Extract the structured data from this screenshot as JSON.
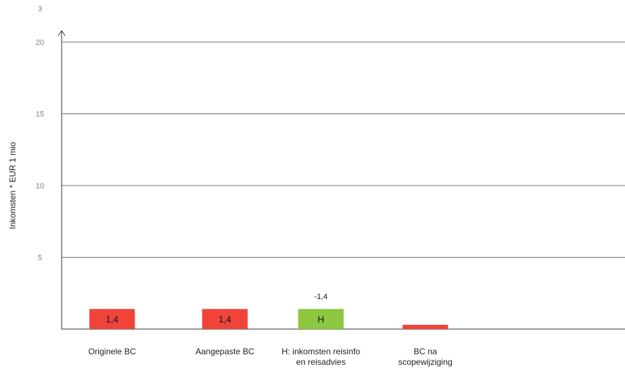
{
  "chart_data": {
    "type": "bar",
    "title": "",
    "xlabel": "",
    "ylabel": "Inkomsten * EUR 1 mio",
    "ylim": [
      0,
      20
    ],
    "grid": true,
    "y_ticks": [
      {
        "value": 5,
        "label": "5"
      },
      {
        "value": 10,
        "label": "10"
      },
      {
        "value": 15,
        "label": "15"
      },
      {
        "value": 20,
        "label": "20"
      }
    ],
    "extra_top_tick_label": "3",
    "categories": [
      [
        "Originele BC"
      ],
      [
        "Aangepaste BC"
      ],
      [
        "H: inkomsten reisinfo",
        "en reisadvies"
      ],
      [
        "BC na",
        "scopewijziging"
      ]
    ],
    "values": [
      1.4,
      1.4,
      1.4,
      0.3
    ],
    "bar_labels": [
      "1,4",
      "1,4",
      "H",
      ""
    ],
    "annotations": [
      {
        "category_index": 2,
        "text": "-1,4"
      }
    ],
    "colors": {
      "red": "#f0443a",
      "green": "#8dc63f",
      "axis": "#333333",
      "grid": "#6f6f6f"
    },
    "bar_colors": [
      "red",
      "red",
      "green",
      "red"
    ]
  }
}
